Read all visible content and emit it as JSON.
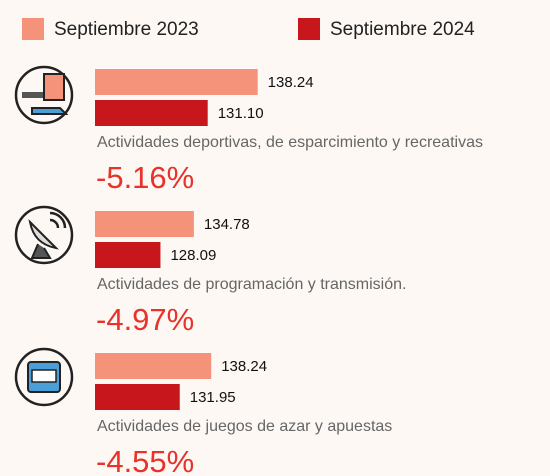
{
  "legend": [
    {
      "name": "Septiembre 2023",
      "color": "#f4937a"
    },
    {
      "name": "Septiembre 2024",
      "color": "#c8161d"
    }
  ],
  "chart_data": [
    {
      "type": "bar",
      "orientation": "horizontal",
      "category": "Actividades deportivas, de esparcimiento y recreativas",
      "values": [
        138.24,
        131.1
      ],
      "value_labels": [
        "138.24",
        "131.10"
      ],
      "xlim": [
        115,
        140
      ],
      "annotation": "-5.16%"
    },
    {
      "type": "bar",
      "orientation": "horizontal",
      "category": "Actividades de programación y transmisión.",
      "values": [
        134.78,
        128.09
      ],
      "value_labels": [
        "134.78",
        "128.09"
      ],
      "xlim": [
        115,
        150
      ],
      "annotation": "-4.97%"
    },
    {
      "type": "bar",
      "orientation": "horizontal",
      "category": "Actividades de juegos de azar y apuestas",
      "values": [
        138.24,
        131.95
      ],
      "value_labels": [
        "138.24",
        "131.95"
      ],
      "xlim": [
        115,
        150
      ],
      "annotation": "-4.55%"
    }
  ]
}
